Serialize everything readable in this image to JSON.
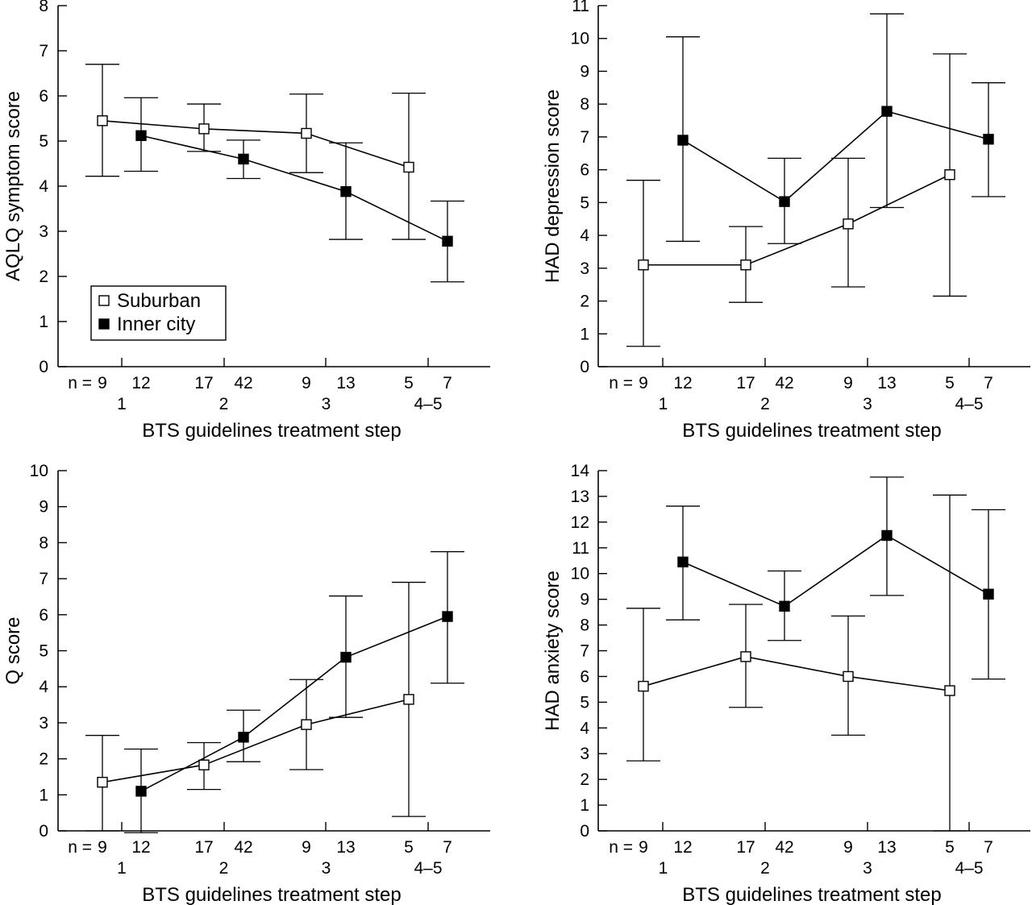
{
  "chart_data": [
    {
      "type": "line",
      "ylabel": "AQLQ symptom score",
      "xlabel": "BTS guidelines treatment step",
      "ylim": [
        0,
        8
      ],
      "yticks": [
        0,
        1,
        2,
        3,
        4,
        5,
        6,
        7,
        8
      ],
      "grid": false,
      "legend": {
        "placement": "bottom-left",
        "entries": [
          {
            "name": "Suburban",
            "marker": "open-square"
          },
          {
            "name": "Inner city",
            "marker": "filled-square"
          }
        ]
      },
      "categories": [
        "1",
        "2",
        "3",
        "4–5"
      ],
      "n_prefix": "n = ",
      "n_labels": [
        [
          "9",
          "12"
        ],
        [
          "17",
          "42"
        ],
        [
          "9",
          "13"
        ],
        [
          "5",
          "7"
        ]
      ],
      "series": [
        {
          "name": "Suburban",
          "marker": "open-square",
          "values": [
            5.45,
            5.27,
            5.17,
            4.42
          ],
          "lower": [
            4.22,
            4.77,
            4.3,
            2.82
          ],
          "upper": [
            6.7,
            5.82,
            6.04,
            6.06
          ]
        },
        {
          "name": "Inner city",
          "marker": "filled-square",
          "values": [
            5.12,
            4.6,
            3.88,
            2.78
          ],
          "lower": [
            4.33,
            4.17,
            2.82,
            1.88
          ],
          "upper": [
            5.96,
            5.02,
            4.96,
            3.67
          ]
        }
      ]
    },
    {
      "type": "line",
      "ylabel": "HAD depression score",
      "xlabel": "BTS guidelines treatment step",
      "ylim": [
        0,
        11
      ],
      "yticks": [
        0,
        1,
        2,
        3,
        4,
        5,
        6,
        7,
        8,
        9,
        10,
        11
      ],
      "grid": false,
      "categories": [
        "1",
        "2",
        "3",
        "4–5"
      ],
      "n_prefix": "n = ",
      "n_labels": [
        [
          "9",
          "12"
        ],
        [
          "17",
          "42"
        ],
        [
          "9",
          "13"
        ],
        [
          "5",
          "7"
        ]
      ],
      "series": [
        {
          "name": "Suburban",
          "marker": "open-square",
          "values": [
            3.1,
            3.1,
            4.35,
            5.85
          ],
          "lower": [
            0.62,
            1.96,
            2.43,
            2.15
          ],
          "upper": [
            5.68,
            4.27,
            6.35,
            9.53
          ]
        },
        {
          "name": "Inner city",
          "marker": "filled-square",
          "values": [
            6.9,
            5.03,
            7.78,
            6.93
          ],
          "lower": [
            3.82,
            3.75,
            4.85,
            5.18
          ],
          "upper": [
            10.05,
            6.35,
            10.75,
            8.65
          ]
        }
      ]
    },
    {
      "type": "line",
      "ylabel": "Q score",
      "xlabel": "BTS guidelines treatment step",
      "ylim": [
        0,
        10
      ],
      "yticks": [
        0,
        1,
        2,
        3,
        4,
        5,
        6,
        7,
        8,
        9,
        10
      ],
      "grid": false,
      "categories": [
        "1",
        "2",
        "3",
        "4–5"
      ],
      "n_prefix": "n = ",
      "n_labels": [
        [
          "9",
          "12"
        ],
        [
          "17",
          "42"
        ],
        [
          "9",
          "13"
        ],
        [
          "5",
          "7"
        ]
      ],
      "series": [
        {
          "name": "Suburban",
          "marker": "open-square",
          "values": [
            1.35,
            1.83,
            2.95,
            3.65
          ],
          "lower": [
            0.0,
            1.15,
            1.7,
            0.4
          ],
          "upper": [
            2.65,
            2.45,
            4.2,
            6.9
          ]
        },
        {
          "name": "Inner city",
          "marker": "filled-square",
          "values": [
            1.1,
            2.6,
            4.82,
            5.95
          ],
          "lower": [
            -0.05,
            1.92,
            3.15,
            4.1
          ],
          "upper": [
            2.27,
            3.35,
            6.52,
            7.75
          ]
        }
      ]
    },
    {
      "type": "line",
      "ylabel": "HAD anxiety score",
      "xlabel": "BTS guidelines treatment step",
      "ylim": [
        0,
        14
      ],
      "yticks": [
        0,
        1,
        2,
        3,
        4,
        5,
        6,
        7,
        8,
        9,
        10,
        11,
        12,
        13,
        14
      ],
      "grid": false,
      "categories": [
        "1",
        "2",
        "3",
        "4–5"
      ],
      "n_prefix": "n = ",
      "n_labels": [
        [
          "9",
          "12"
        ],
        [
          "17",
          "42"
        ],
        [
          "9",
          "13"
        ],
        [
          "5",
          "7"
        ]
      ],
      "series": [
        {
          "name": "Suburban",
          "marker": "open-square",
          "values": [
            5.62,
            6.77,
            6.0,
            5.45
          ],
          "lower": [
            2.72,
            4.8,
            3.72,
            0.0
          ],
          "upper": [
            8.65,
            8.8,
            8.35,
            13.05
          ]
        },
        {
          "name": "Inner city",
          "marker": "filled-square",
          "values": [
            10.45,
            8.73,
            11.48,
            9.2
          ],
          "lower": [
            8.2,
            7.4,
            9.15,
            5.9
          ],
          "upper": [
            12.62,
            10.1,
            13.75,
            12.48
          ]
        }
      ]
    }
  ]
}
